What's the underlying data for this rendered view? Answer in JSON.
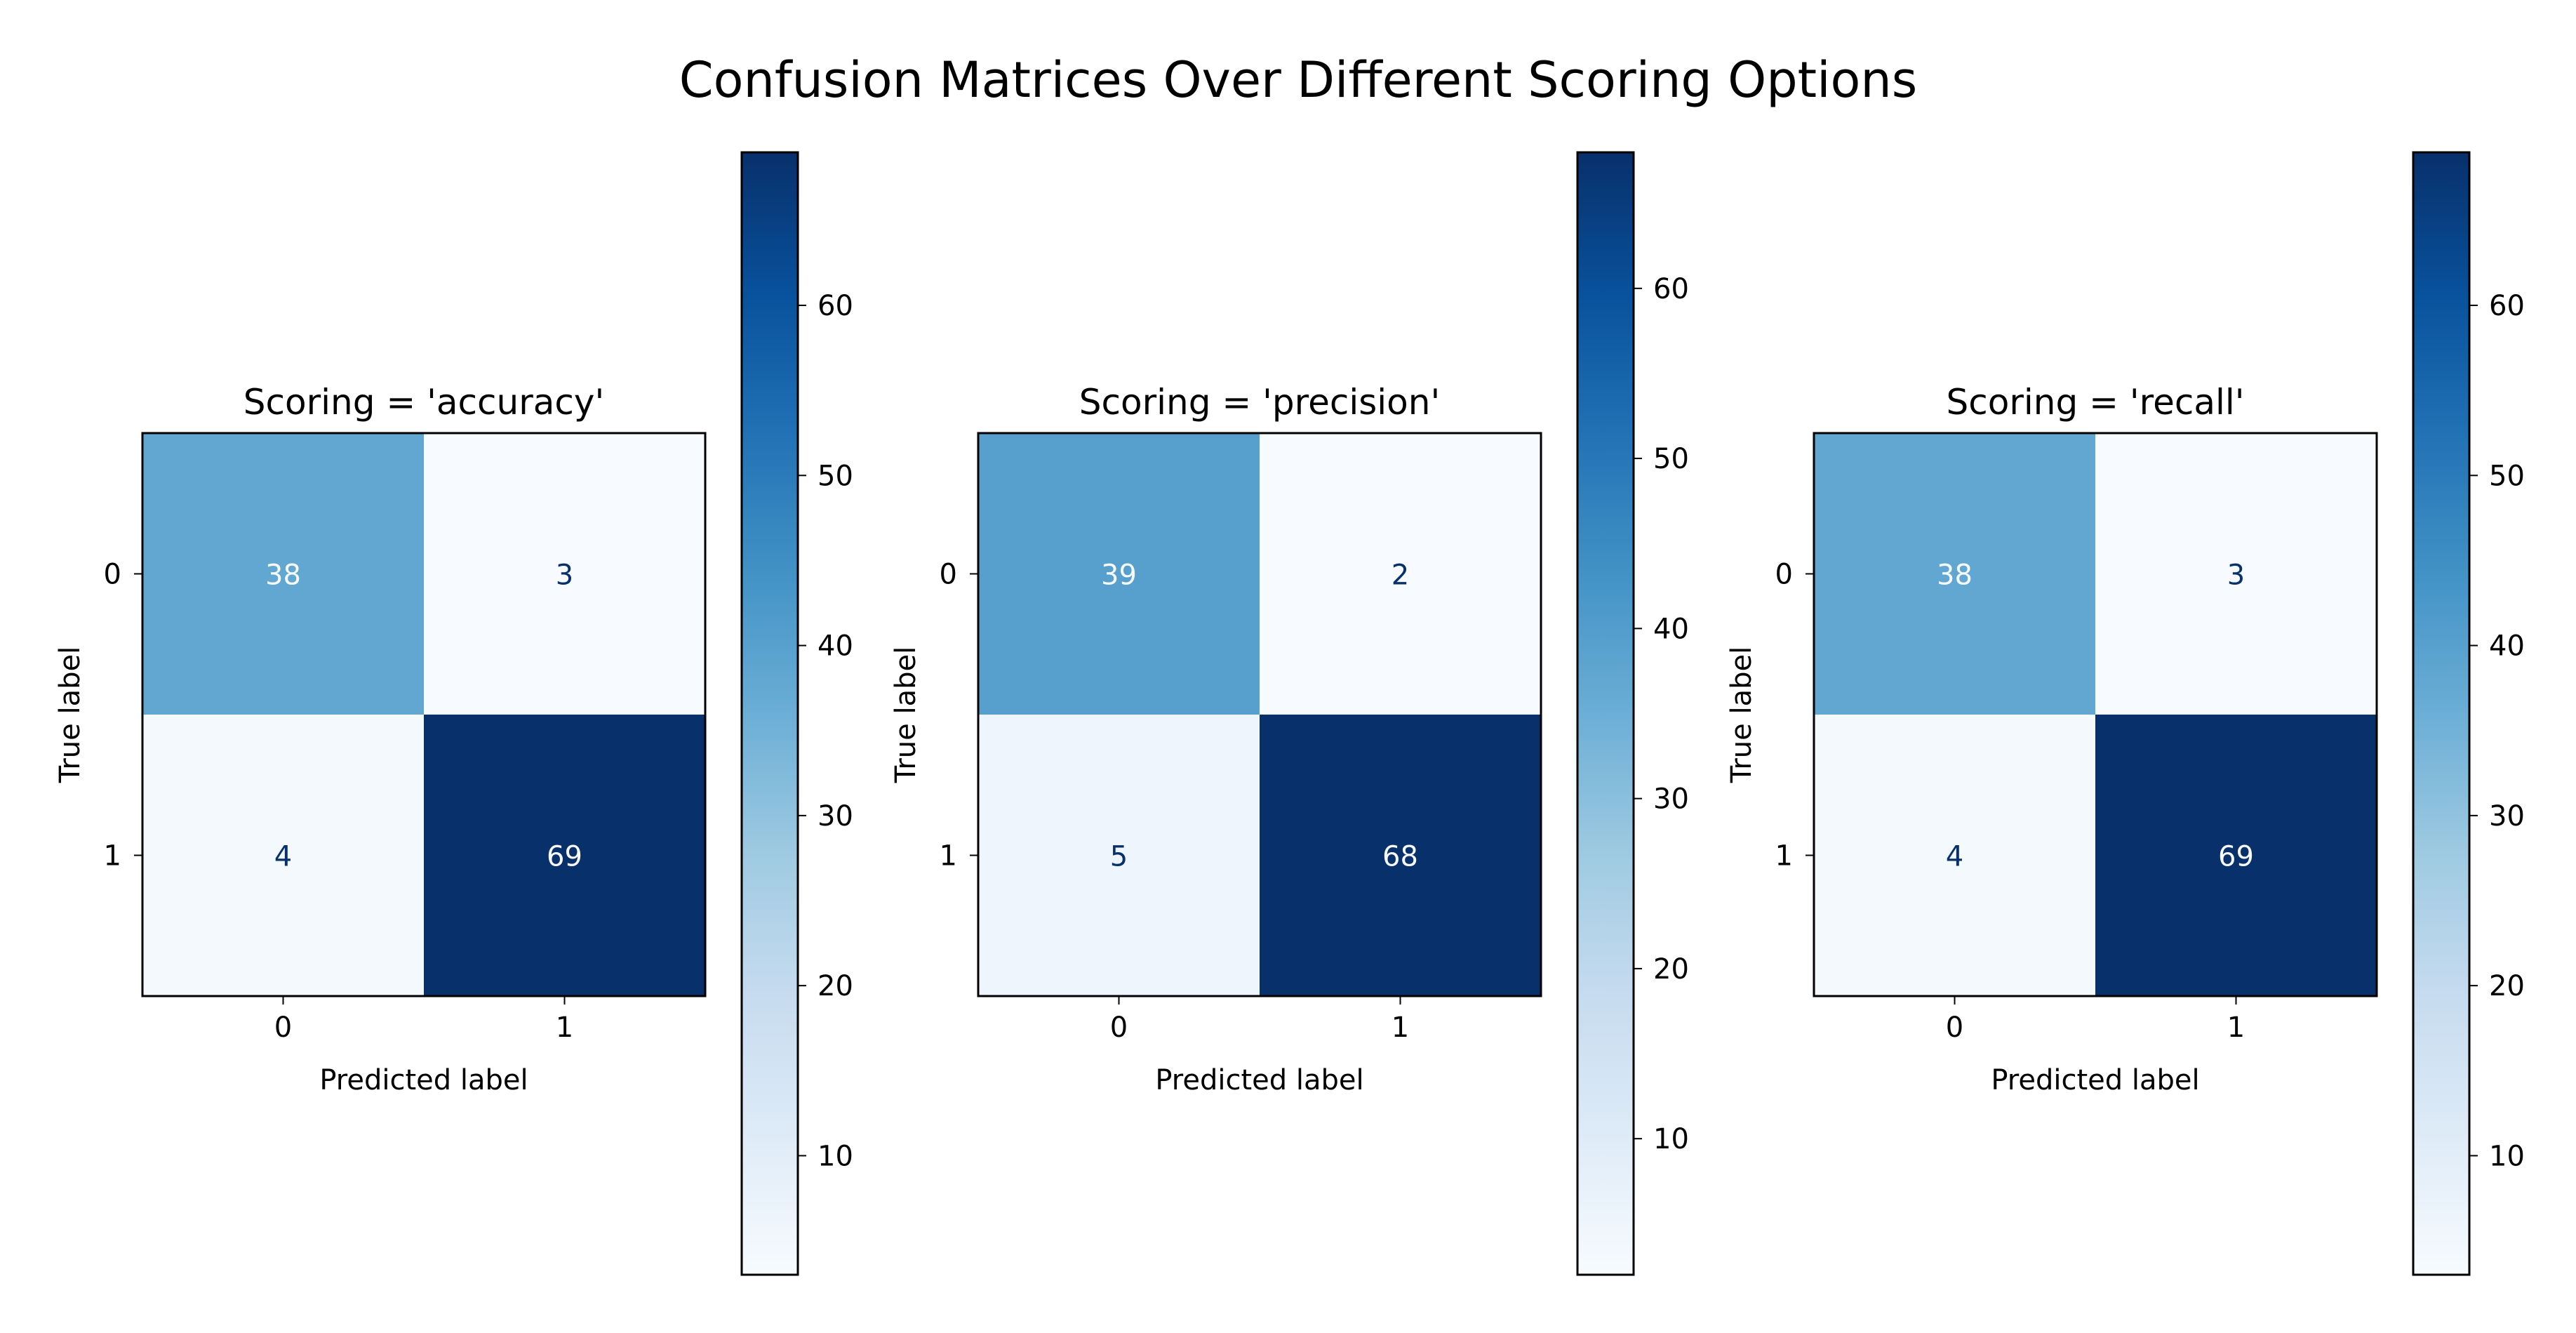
{
  "figure": {
    "title": "Confusion Matrices Over Different Scoring Options"
  },
  "chart_data": [
    {
      "type": "heatmap",
      "title": "Scoring = 'accuracy'",
      "xlabel": "Predicted label",
      "ylabel": "True label",
      "x_categories": [
        "0",
        "1"
      ],
      "y_categories": [
        "0",
        "1"
      ],
      "matrix": [
        [
          38,
          3
        ],
        [
          4,
          69
        ]
      ],
      "colormap": "Blues",
      "colorbar": {
        "vmin": 3,
        "vmax": 69,
        "ticks": [
          10,
          20,
          30,
          40,
          50,
          60
        ]
      },
      "grid": false
    },
    {
      "type": "heatmap",
      "title": "Scoring = 'precision'",
      "xlabel": "Predicted label",
      "ylabel": "True label",
      "x_categories": [
        "0",
        "1"
      ],
      "y_categories": [
        "0",
        "1"
      ],
      "matrix": [
        [
          39,
          2
        ],
        [
          5,
          68
        ]
      ],
      "colormap": "Blues",
      "colorbar": {
        "vmin": 2,
        "vmax": 68,
        "ticks": [
          10,
          20,
          30,
          40,
          50,
          60
        ]
      },
      "grid": false
    },
    {
      "type": "heatmap",
      "title": "Scoring = 'recall'",
      "xlabel": "Predicted label",
      "ylabel": "True label",
      "x_categories": [
        "0",
        "1"
      ],
      "y_categories": [
        "0",
        "1"
      ],
      "matrix": [
        [
          38,
          3
        ],
        [
          4,
          69
        ]
      ],
      "colormap": "Blues",
      "colorbar": {
        "vmin": 3,
        "vmax": 69,
        "ticks": [
          10,
          20,
          30,
          40,
          50,
          60
        ]
      },
      "grid": false
    }
  ]
}
